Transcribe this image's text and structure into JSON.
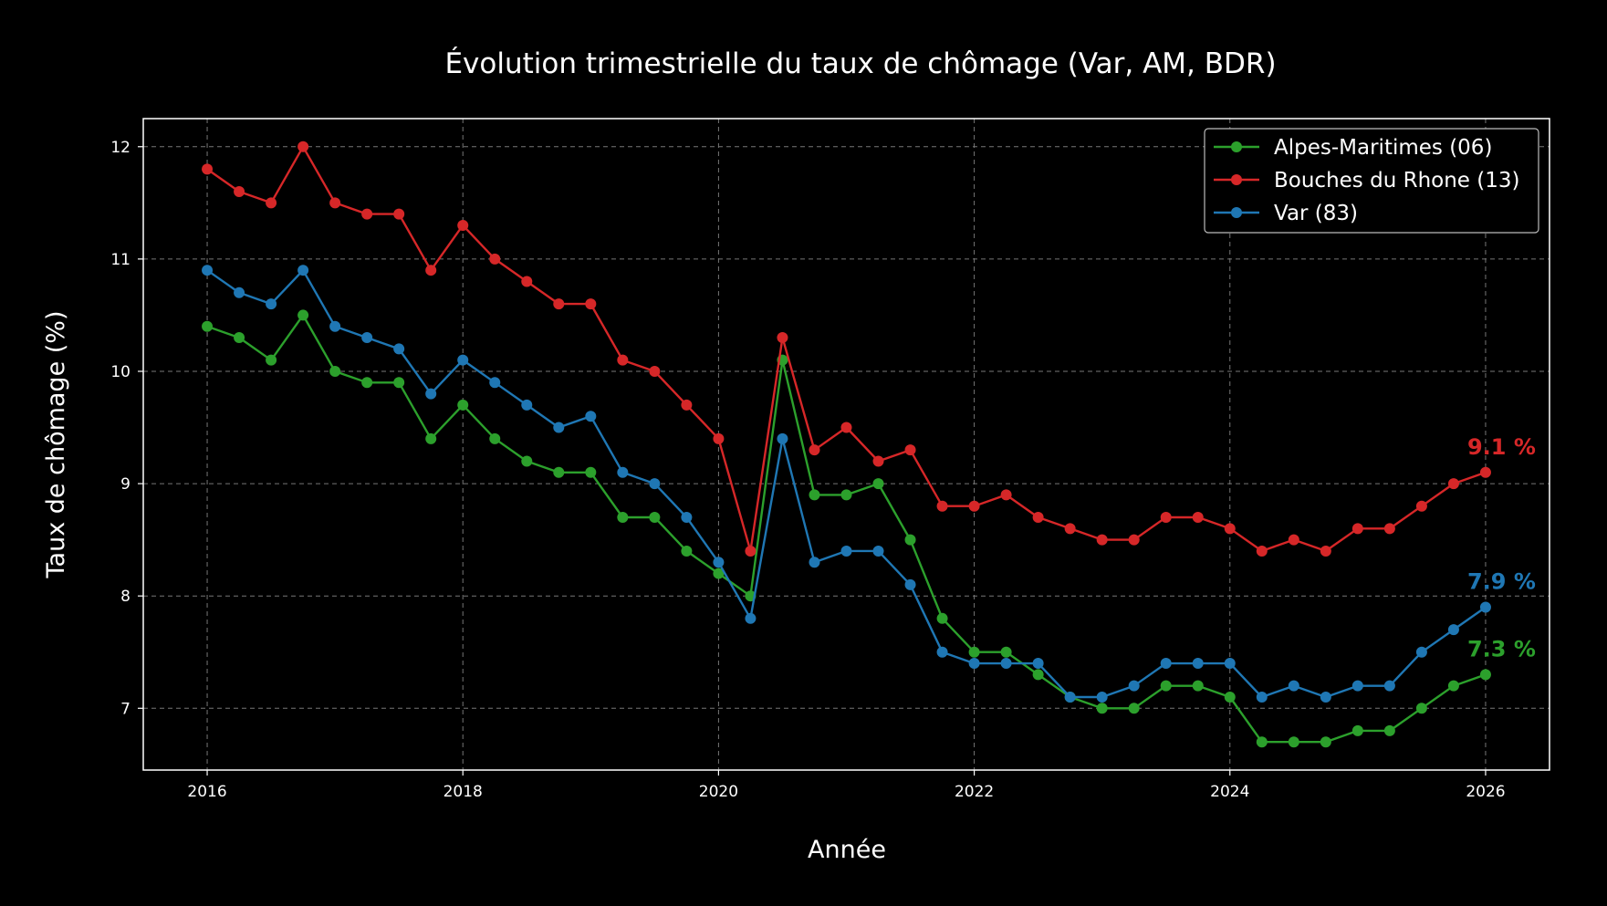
{
  "chart_data": {
    "type": "line",
    "title": "Évolution trimestrielle du taux de chômage (Var, AM, BDR)",
    "xlabel": "Année",
    "ylabel": "Taux de chômage (%)",
    "xlim": [
      2015.5,
      2026.5
    ],
    "ylim": [
      6.45,
      12.25
    ],
    "xticks": [
      2016,
      2018,
      2020,
      2022,
      2024,
      2026
    ],
    "yticks": [
      7,
      8,
      9,
      10,
      11,
      12
    ],
    "grid": true,
    "legend_position": "top-right",
    "x": [
      "2016-T1",
      "2016-T2",
      "2016-T3",
      "2016-T4",
      "2017-T1",
      "2017-T2",
      "2017-T3",
      "2017-T4",
      "2018-T1",
      "2018-T2",
      "2018-T3",
      "2018-T4",
      "2019-T1",
      "2019-T2",
      "2019-T3",
      "2019-T4",
      "2020-T1",
      "2020-T2",
      "2020-T3",
      "2020-T4",
      "2021-T1",
      "2021-T2",
      "2021-T3",
      "2021-T4",
      "2022-T1",
      "2022-T2",
      "2022-T3",
      "2022-T4",
      "2023-T1",
      "2023-T2",
      "2023-T3",
      "2023-T4",
      "2024-T1",
      "2024-T2",
      "2024-T3",
      "2024-T4",
      "2025-T1",
      "2025-T2",
      "2025-T3",
      "2025-T4",
      "2026-T1"
    ],
    "series": [
      {
        "name": "Alpes-Maritimes (06)",
        "color": "#2ca02c",
        "end_label": "7.3 %",
        "values": [
          10.4,
          10.3,
          10.1,
          10.5,
          10.0,
          9.9,
          9.9,
          9.4,
          9.7,
          9.4,
          9.2,
          9.1,
          9.1,
          8.7,
          8.7,
          8.4,
          8.2,
          8.0,
          10.1,
          8.9,
          8.9,
          9.0,
          8.5,
          7.8,
          7.5,
          7.5,
          7.3,
          7.1,
          7.0,
          7.0,
          7.2,
          7.2,
          7.1,
          6.7,
          6.7,
          6.7,
          6.8,
          6.8,
          7.0,
          7.2,
          7.3
        ]
      },
      {
        "name": "Bouches du Rhone (13)",
        "color": "#d62728",
        "end_label": "9.1 %",
        "values": [
          11.8,
          11.6,
          11.5,
          12.0,
          11.5,
          11.4,
          11.4,
          10.9,
          11.3,
          11.0,
          10.8,
          10.6,
          10.6,
          10.1,
          10.0,
          9.7,
          9.4,
          8.4,
          10.3,
          9.3,
          9.5,
          9.2,
          9.3,
          8.8,
          8.8,
          8.9,
          8.7,
          8.6,
          8.5,
          8.5,
          8.7,
          8.7,
          8.6,
          8.4,
          8.5,
          8.4,
          8.6,
          8.6,
          8.8,
          9.0,
          9.1
        ]
      },
      {
        "name": "Var (83)",
        "color": "#1f77b4",
        "end_label": "7.9 %",
        "values": [
          10.9,
          10.7,
          10.6,
          10.9,
          10.4,
          10.3,
          10.2,
          9.8,
          10.1,
          9.9,
          9.7,
          9.5,
          9.6,
          9.1,
          9.0,
          8.7,
          8.3,
          7.8,
          9.4,
          8.3,
          8.4,
          8.4,
          8.1,
          7.5,
          7.4,
          7.4,
          7.4,
          7.1,
          7.1,
          7.2,
          7.4,
          7.4,
          7.4,
          7.1,
          7.2,
          7.1,
          7.2,
          7.2,
          7.5,
          7.7,
          7.9
        ]
      }
    ]
  }
}
